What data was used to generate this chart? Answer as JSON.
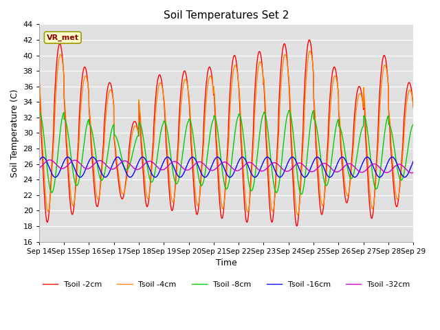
{
  "title": "Soil Temperatures Set 2",
  "xlabel": "Time",
  "ylabel": "Soil Temperature (C)",
  "ylim": [
    16,
    44
  ],
  "yticks": [
    16,
    18,
    20,
    22,
    24,
    26,
    28,
    30,
    32,
    34,
    36,
    38,
    40,
    42,
    44
  ],
  "xtick_labels": [
    "Sep 14",
    "Sep 15",
    "Sep 16",
    "Sep 17",
    "Sep 18",
    "Sep 19",
    "Sep 20",
    "Sep 21",
    "Sep 22",
    "Sep 23",
    "Sep 24",
    "Sep 25",
    "Sep 26",
    "Sep 27",
    "Sep 28",
    "Sep 29"
  ],
  "legend_labels": [
    "Tsoil -2cm",
    "Tsoil -4cm",
    "Tsoil -8cm",
    "Tsoil -16cm",
    "Tsoil -32cm"
  ],
  "line_colors": [
    "#ff0000",
    "#ff8800",
    "#00cc00",
    "#0000ff",
    "#cc00cc"
  ],
  "line_widths": [
    1.0,
    1.0,
    1.0,
    1.0,
    1.0
  ],
  "annotation_text": "VR_met",
  "bg_color": "#e0e0e0"
}
